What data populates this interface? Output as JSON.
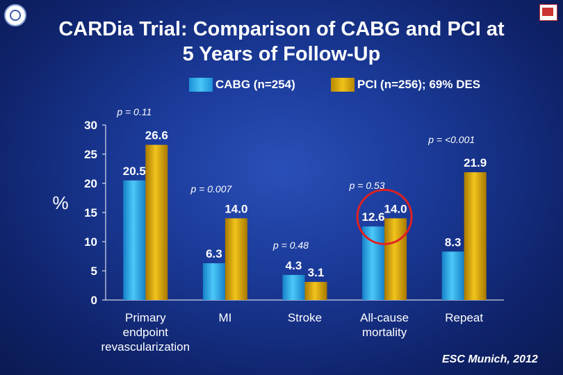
{
  "title_line1": "CARDia Trial: Comparison of CABG and PCI at",
  "title_line2": "5 Years of Follow-Up",
  "legend": {
    "cabg": "CABG (n=254)",
    "pci": "PCI (n=256); 69% DES"
  },
  "footer": "ESC Munich, 2012",
  "colors": {
    "cabg": "#2aa9ee",
    "pci": "#e0aa0c",
    "circle": "#e02020"
  },
  "chart_data": {
    "type": "bar",
    "ylabel": "%",
    "ylim": [
      0,
      30
    ],
    "yticks": [
      0,
      5,
      10,
      15,
      20,
      25,
      30
    ],
    "categories": [
      "Primary\nendpoint\nrevascularization",
      "MI",
      "Stroke",
      "All-cause\nmortality",
      "Repeat"
    ],
    "series": [
      {
        "name": "CABG (n=254)",
        "values": [
          20.5,
          6.3,
          4.3,
          12.6,
          8.3
        ],
        "labels": [
          "20.5",
          "6.3",
          "4.3",
          "12.6",
          "8.3"
        ]
      },
      {
        "name": "PCI (n=256); 69% DES",
        "values": [
          26.6,
          14.0,
          3.1,
          14.0,
          21.9
        ],
        "labels": [
          "26.6",
          "14.0",
          "3.1",
          "14.0",
          "21.9"
        ]
      }
    ],
    "pvalues": [
      "p = 0.11",
      "p = 0.007",
      "p = 0.48",
      "p = 0.53",
      "p = <0.001"
    ]
  }
}
